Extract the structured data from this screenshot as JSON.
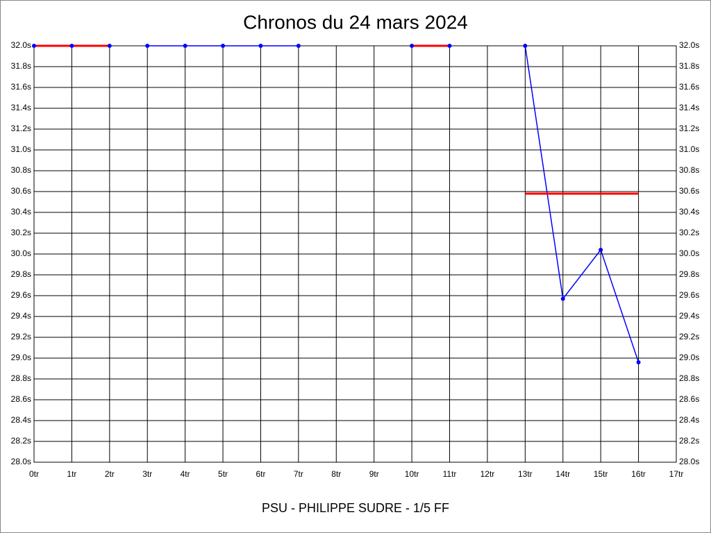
{
  "chart_data": {
    "type": "line",
    "title": "Chronos du 24 mars 2024",
    "subtitle": "PSU - PHILIPPE SUDRE - 1/5 FF",
    "xlim": [
      0,
      17
    ],
    "xticks": [
      {
        "value": 0,
        "label": "0tr"
      },
      {
        "value": 1,
        "label": "1tr"
      },
      {
        "value": 2,
        "label": "2tr"
      },
      {
        "value": 3,
        "label": "3tr"
      },
      {
        "value": 4,
        "label": "4tr"
      },
      {
        "value": 5,
        "label": "5tr"
      },
      {
        "value": 6,
        "label": "6tr"
      },
      {
        "value": 7,
        "label": "7tr"
      },
      {
        "value": 8,
        "label": "8tr"
      },
      {
        "value": 9,
        "label": "9tr"
      },
      {
        "value": 10,
        "label": "10tr"
      },
      {
        "value": 11,
        "label": "11tr"
      },
      {
        "value": 12,
        "label": "12tr"
      },
      {
        "value": 13,
        "label": "13tr"
      },
      {
        "value": 14,
        "label": "14tr"
      },
      {
        "value": 15,
        "label": "15tr"
      },
      {
        "value": 16,
        "label": "16tr"
      },
      {
        "value": 17,
        "label": "17tr"
      }
    ],
    "ylim": [
      28.0,
      32.0
    ],
    "yticks": [
      {
        "value": 28.0,
        "label": "28.0s"
      },
      {
        "value": 28.2,
        "label": "28.2s"
      },
      {
        "value": 28.4,
        "label": "28.4s"
      },
      {
        "value": 28.6,
        "label": "28.6s"
      },
      {
        "value": 28.8,
        "label": "28.8s"
      },
      {
        "value": 29.0,
        "label": "29.0s"
      },
      {
        "value": 29.2,
        "label": "29.2s"
      },
      {
        "value": 29.4,
        "label": "29.4s"
      },
      {
        "value": 29.6,
        "label": "29.6s"
      },
      {
        "value": 29.8,
        "label": "29.8s"
      },
      {
        "value": 30.0,
        "label": "30.0s"
      },
      {
        "value": 30.2,
        "label": "30.2s"
      },
      {
        "value": 30.4,
        "label": "30.4s"
      },
      {
        "value": 30.6,
        "label": "30.6s"
      },
      {
        "value": 30.8,
        "label": "30.8s"
      },
      {
        "value": 31.0,
        "label": "31.0s"
      },
      {
        "value": 31.2,
        "label": "31.2s"
      },
      {
        "value": 31.4,
        "label": "31.4s"
      },
      {
        "value": 31.6,
        "label": "31.6s"
      },
      {
        "value": 31.8,
        "label": "31.8s"
      },
      {
        "value": 32.0,
        "label": "32.0s"
      }
    ],
    "grid": true,
    "ref_lines": [
      {
        "color": "#ff0000",
        "x": [
          0,
          2
        ],
        "values": [
          32.0,
          32.0
        ]
      },
      {
        "color": "#ff0000",
        "x": [
          10,
          11
        ],
        "values": [
          32.0,
          32.0
        ]
      },
      {
        "color": "#ff0000",
        "x": [
          13,
          16
        ],
        "values": [
          30.58,
          30.58
        ]
      }
    ],
    "series": [
      {
        "color": "#0000ff",
        "x": [
          0,
          1,
          2
        ],
        "values": [
          32.0,
          32.0,
          32.0
        ]
      },
      {
        "color": "#0000ff",
        "x": [
          3,
          4,
          5,
          6,
          7
        ],
        "values": [
          32.0,
          32.0,
          32.0,
          32.0,
          32.0
        ]
      },
      {
        "color": "#0000ff",
        "x": [
          10,
          11
        ],
        "values": [
          32.0,
          32.0
        ]
      },
      {
        "color": "#0000ff",
        "x": [
          13,
          14,
          15,
          16
        ],
        "values": [
          32.0,
          29.57,
          30.04,
          28.96
        ]
      }
    ]
  }
}
